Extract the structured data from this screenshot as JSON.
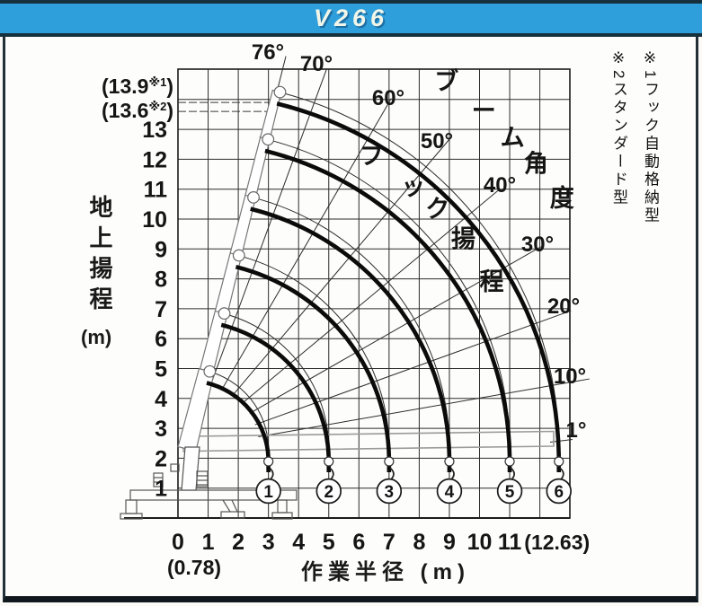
{
  "header": {
    "title": "V266"
  },
  "colors": {
    "header_bg": "#2f9fdb",
    "header_border": "#17303d",
    "ink": "#1a1a1a",
    "boom_outline_gray": "#9b9b9b",
    "curve_black": "#0b0b0b"
  },
  "y_axis_title": {
    "text": "地上揚程",
    "unit": "(m)"
  },
  "notes": [
    {
      "text": "※1フック自動格納型"
    },
    {
      "text": "※2スタンダード型"
    }
  ],
  "chart_data": {
    "type": "line",
    "description": "クレーン作業範囲図（ブーム角度とフック揚程）",
    "x_axis": {
      "label": "作業半径 (m)",
      "ticks": [
        "0",
        "1",
        "2",
        "3",
        "4",
        "5",
        "6",
        "7",
        "8",
        "9",
        "10",
        "11",
        "(12.63)"
      ],
      "tick_values": [
        0,
        1,
        2,
        3,
        4,
        5,
        6,
        7,
        8,
        9,
        10,
        11,
        12.63
      ],
      "min_radius_label": "(0.78)",
      "min_radius_value": 0.78,
      "max_radius_value": 12.63
    },
    "y_axis": {
      "label": "地上揚程 (m)",
      "tick_values": [
        1,
        2,
        3,
        4,
        5,
        6,
        7,
        8,
        9,
        10,
        11,
        12,
        13
      ],
      "special_labels": [
        {
          "value": 13.9,
          "mark": "※1"
        },
        {
          "value": 13.6,
          "mark": "※2"
        }
      ]
    },
    "boom_angles": {
      "band_label": "ブーム角度",
      "values_deg": [
        76,
        70,
        60,
        50,
        40,
        30,
        20,
        10,
        1
      ],
      "labels": [
        "76°",
        "70°",
        "60°",
        "50°",
        "40°",
        "30°",
        "20°",
        "10°",
        "1°"
      ]
    },
    "hook_band_label": "フック揚程",
    "stages": [
      {
        "no": "1",
        "max_radius_m": 3
      },
      {
        "no": "2",
        "max_radius_m": 5
      },
      {
        "no": "3",
        "max_radius_m": 7
      },
      {
        "no": "4",
        "max_radius_m": 9
      },
      {
        "no": "5",
        "max_radius_m": 11
      },
      {
        "no": "6",
        "max_radius_m": 12.63
      }
    ],
    "geometry": {
      "pivot_x_m": 0.3,
      "pivot_height_m": 2.3,
      "hook_offset_m": 0.4,
      "max_boom_angle_deg": 76,
      "min_boom_angle_deg": 1
    }
  }
}
